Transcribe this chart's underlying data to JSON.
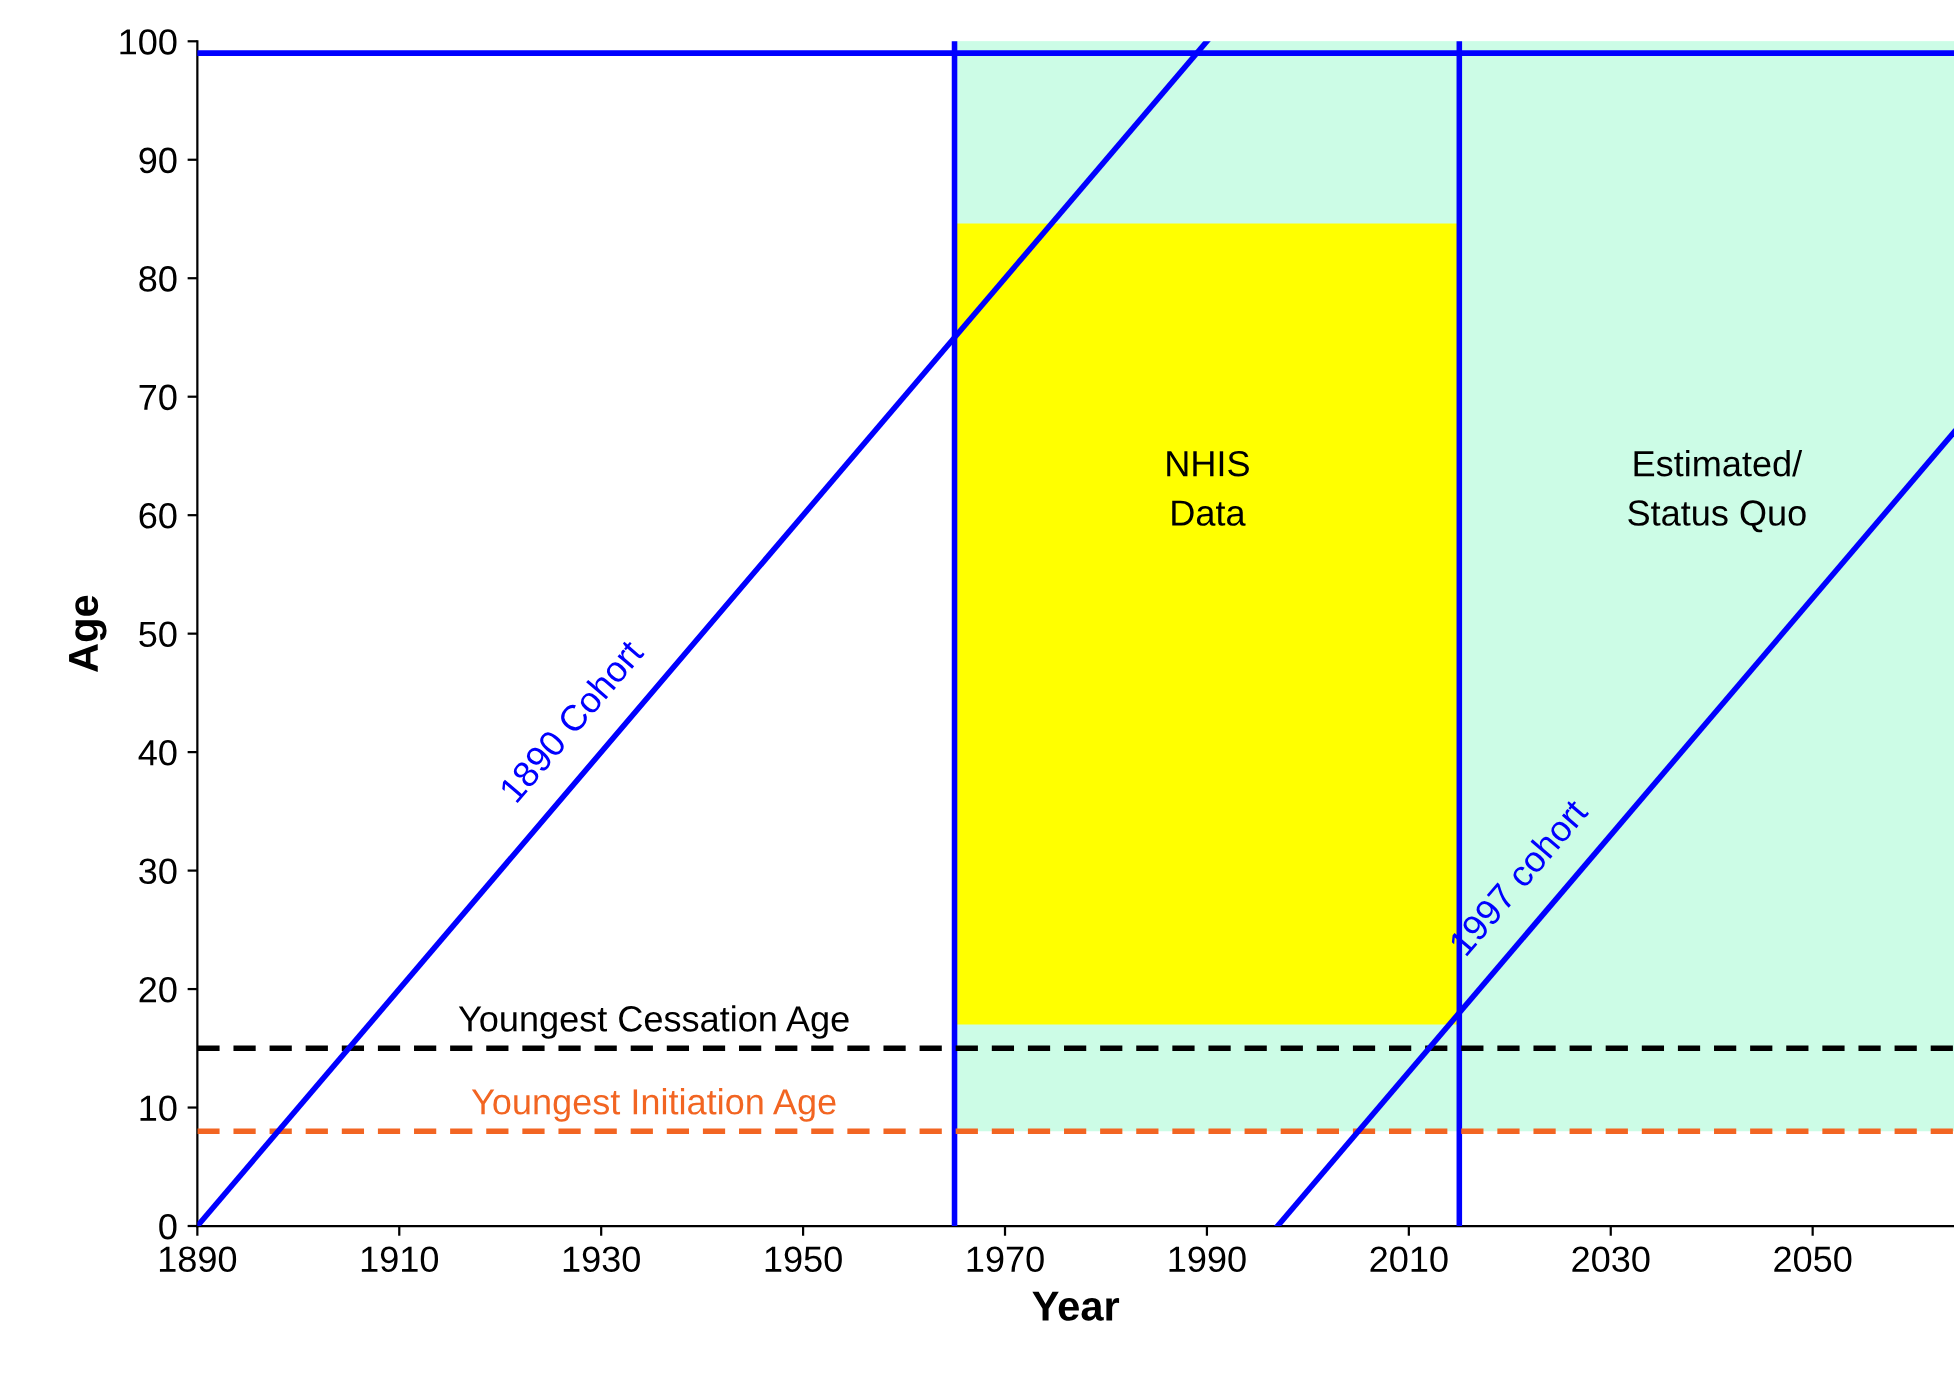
{
  "chart_data": {
    "type": "line",
    "xlabel": "Year",
    "ylabel": "Age",
    "xlim": [
      1890,
      2064
    ],
    "ylim": [
      0,
      100
    ],
    "xticks": [
      1890,
      1910,
      1930,
      1950,
      1970,
      1990,
      2010,
      2030,
      2050
    ],
    "yticks": [
      0,
      10,
      20,
      30,
      40,
      50,
      60,
      70,
      80,
      90,
      100
    ],
    "grid": false,
    "legend": false,
    "marker": "none",
    "line_style": "solid",
    "series": [
      {
        "color": "#ccfce6",
        "x": [
          1965,
          2064
        ],
        "values": [
          100,
          100
        ],
        "lower": [
          8,
          8
        ],
        "upper": [
          100,
          100
        ]
      },
      {
        "color": "#ffff00",
        "x": [
          1965,
          2015
        ],
        "values": [
          84.5,
          84.5
        ],
        "lower": [
          17,
          17
        ],
        "upper": [
          84.5,
          84.5
        ]
      },
      {
        "name": "1890 Cohort",
        "color": "#0000ff",
        "x": [
          1890,
          1990
        ],
        "values": [
          0,
          100
        ]
      },
      {
        "name": "1997 cohort",
        "color": "#0000ff",
        "x": [
          1997,
          2064
        ],
        "values": [
          0,
          67
        ]
      }
    ],
    "ref_lines": [
      {
        "axis": "x",
        "value": 1965,
        "color": "#0000ff",
        "line_style": "solid"
      },
      {
        "axis": "x",
        "value": 2015,
        "color": "#0000ff",
        "line_style": "solid"
      },
      {
        "axis": "y",
        "value": 99,
        "color": "#0000ff",
        "line_style": "solid"
      },
      {
        "axis": "y",
        "value": 15,
        "label": "Youngest Cessation Age",
        "color": "#000000",
        "line_style": "dashed"
      },
      {
        "axis": "y",
        "value": 8,
        "label": "Youngest Initiation Age",
        "color": "#f26522",
        "line_style": "dashed"
      }
    ],
    "annotations": [
      "NHIS\nData",
      "Estimated/\nStatus Quo"
    ]
  }
}
